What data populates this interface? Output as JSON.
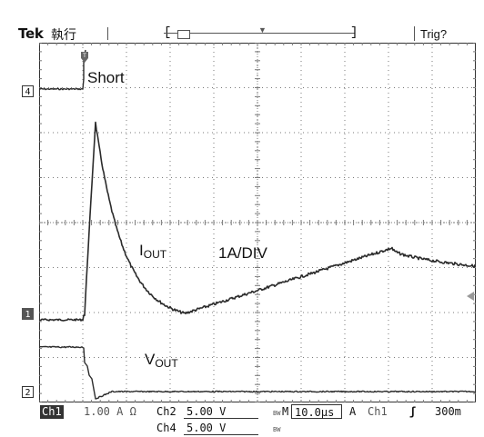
{
  "header": {
    "brand": "Tek",
    "mode": "執行",
    "trigger_status": "Trig?"
  },
  "channels": {
    "ch4_marker": "4",
    "ch1_marker": "1",
    "ch2_marker": "2"
  },
  "annotations": {
    "short": "Short",
    "iout_main": "I",
    "iout_sub": "OUT",
    "scale": "1A/DIV",
    "vout_main": "V",
    "vout_sub": "OUT"
  },
  "status_bar": {
    "ch1_tag": "Ch1",
    "ch1_scale": "1.00 A Ω",
    "ch2_tag": "Ch2",
    "ch2_scale": "5.00 V",
    "bw_mark": "BW",
    "timebase_tag": "M",
    "timebase": "10.0µs",
    "acq_mode": "A",
    "trig_source": "Ch1",
    "trig_slope": "ʃ",
    "trig_level": "300m",
    "ch4_tag": "Ch4",
    "ch4_scale": "5.00 V"
  },
  "colors": {
    "trace": "#2b2b2b",
    "grid": "#7a7a7a",
    "background": "#ffffff"
  }
}
